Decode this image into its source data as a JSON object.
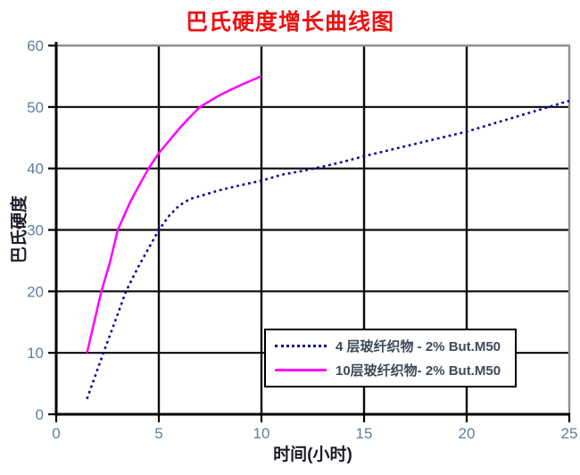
{
  "chart_data": {
    "type": "line",
    "title": "巴氏硬度增长曲线图",
    "xlabel": "时间(小时)",
    "ylabel": "巴氏硬度",
    "xlim": [
      0,
      25
    ],
    "ylim": [
      0,
      60
    ],
    "xticks": [
      0,
      5,
      10,
      15,
      20,
      25
    ],
    "yticks": [
      0,
      10,
      20,
      30,
      40,
      50,
      60
    ],
    "grid": true,
    "legend_position": "inside-bottom-right",
    "series": [
      {
        "name": "4 层玻纤织物 - 2% But.M50",
        "color": "#000099",
        "style": "dotted",
        "points": [
          [
            1.5,
            2.5
          ],
          [
            2.3,
            10
          ],
          [
            2.8,
            14.5
          ],
          [
            3.4,
            20
          ],
          [
            4,
            24
          ],
          [
            4.5,
            27
          ],
          [
            5,
            30
          ],
          [
            5.5,
            32.3
          ],
          [
            6,
            34
          ],
          [
            6.5,
            35
          ],
          [
            7,
            35.5
          ],
          [
            8,
            36.5
          ],
          [
            9,
            37.3
          ],
          [
            10,
            38
          ],
          [
            11,
            39
          ],
          [
            12,
            39.6
          ],
          [
            13,
            40.3
          ],
          [
            14,
            41.1
          ],
          [
            15,
            42
          ],
          [
            16,
            42.8
          ],
          [
            17,
            43.6
          ],
          [
            18,
            44.4
          ],
          [
            19,
            45.2
          ],
          [
            20,
            46
          ],
          [
            21,
            47
          ],
          [
            22,
            48
          ],
          [
            23,
            49
          ],
          [
            24,
            50
          ],
          [
            25,
            51
          ]
        ]
      },
      {
        "name": "10层玻纤织物- 2% But.M50",
        "color": "#ff00ff",
        "style": "solid",
        "points": [
          [
            1.5,
            10
          ],
          [
            2.2,
            20
          ],
          [
            2.6,
            24.5
          ],
          [
            3,
            30
          ],
          [
            3.6,
            34.5
          ],
          [
            4,
            37
          ],
          [
            4.5,
            40
          ],
          [
            5,
            42.5
          ],
          [
            5.5,
            44.5
          ],
          [
            6,
            46.5
          ],
          [
            6.5,
            48.3
          ],
          [
            7,
            50
          ],
          [
            8,
            52
          ],
          [
            9,
            53.6
          ],
          [
            10,
            55
          ]
        ]
      }
    ],
    "colors": {
      "title": "#ee1111",
      "tick_labels": "#607d9e",
      "axis_titles": "#1c1c28",
      "legend_text": "#3e4a58",
      "grid": "#0a0a0a",
      "axis": "#000000",
      "plot_border": "#8e8e8e",
      "background": "#ffffff"
    }
  }
}
